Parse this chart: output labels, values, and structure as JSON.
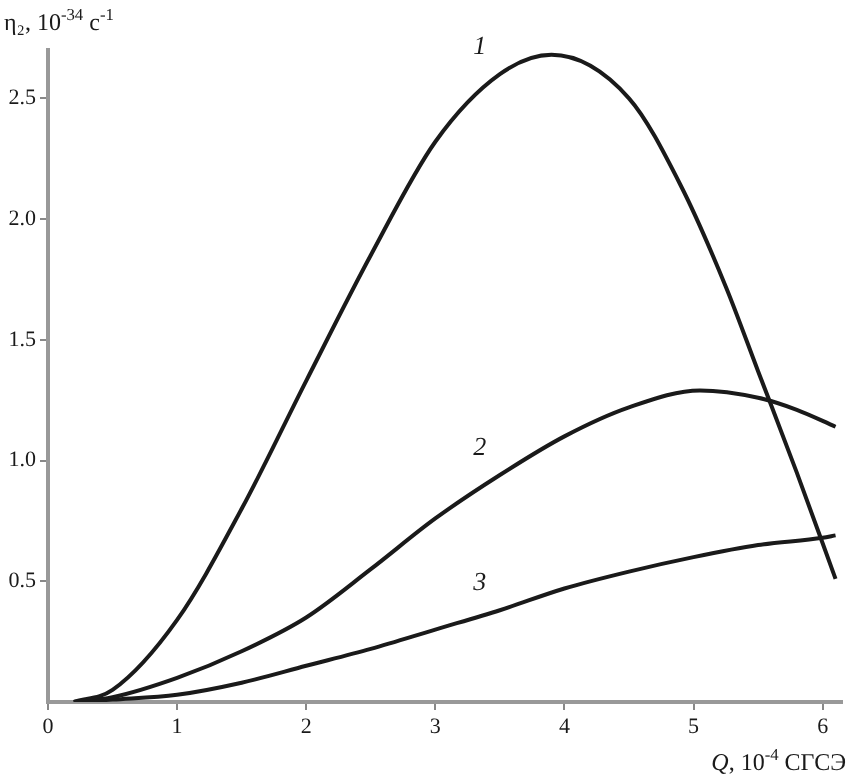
{
  "chart_data": {
    "type": "line",
    "xlabel": "Q, 10$^{-4}$ СГСЭ",
    "ylabel": "η₂, 10$^{-34}$ с$^{-1}$",
    "xlim": [
      0,
      6.15
    ],
    "xticks": [
      0,
      1,
      2,
      3,
      4,
      5,
      6
    ],
    "ylim": [
      0,
      2.7
    ],
    "yticks": [
      0.5,
      {
        "value": 1,
        "label": "1.0"
      },
      1.5,
      {
        "value": 2,
        "label": "2.0"
      },
      2.5
    ],
    "grid": false,
    "legend": false,
    "marker": "none",
    "line_style": "solid",
    "series": [
      {
        "name": "1",
        "color": "#1a1a1a",
        "x": [
          0.2,
          0.5,
          1.0,
          1.5,
          2.0,
          2.5,
          3.0,
          3.5,
          3.9,
          4.5,
          4.9,
          5.25,
          5.5,
          5.8,
          6.1
        ],
        "values": [
          0,
          0.05,
          0.34,
          0.8,
          1.33,
          1.85,
          2.32,
          2.6,
          2.68,
          2.5,
          2.14,
          1.72,
          1.37,
          0.95,
          0.51
        ]
      },
      {
        "name": "2",
        "color": "#1a1a1a",
        "x": [
          0.2,
          0.5,
          1.0,
          1.5,
          2.0,
          2.5,
          3.0,
          3.5,
          4.0,
          4.5,
          5.05,
          5.5,
          5.8,
          6.1
        ],
        "values": [
          0,
          0.02,
          0.1,
          0.21,
          0.35,
          0.55,
          0.76,
          0.94,
          1.1,
          1.22,
          1.29,
          1.26,
          1.21,
          1.14
        ]
      },
      {
        "name": "3",
        "color": "#1a1a1a",
        "x": [
          0.2,
          0.5,
          1.0,
          1.5,
          2.0,
          2.5,
          3.0,
          3.5,
          4.0,
          4.5,
          5.0,
          5.5,
          6.0,
          6.1
        ],
        "values": [
          0,
          0.01,
          0.03,
          0.08,
          0.15,
          0.22,
          0.3,
          0.38,
          0.47,
          0.54,
          0.6,
          0.65,
          0.68,
          0.69
        ]
      }
    ]
  }
}
